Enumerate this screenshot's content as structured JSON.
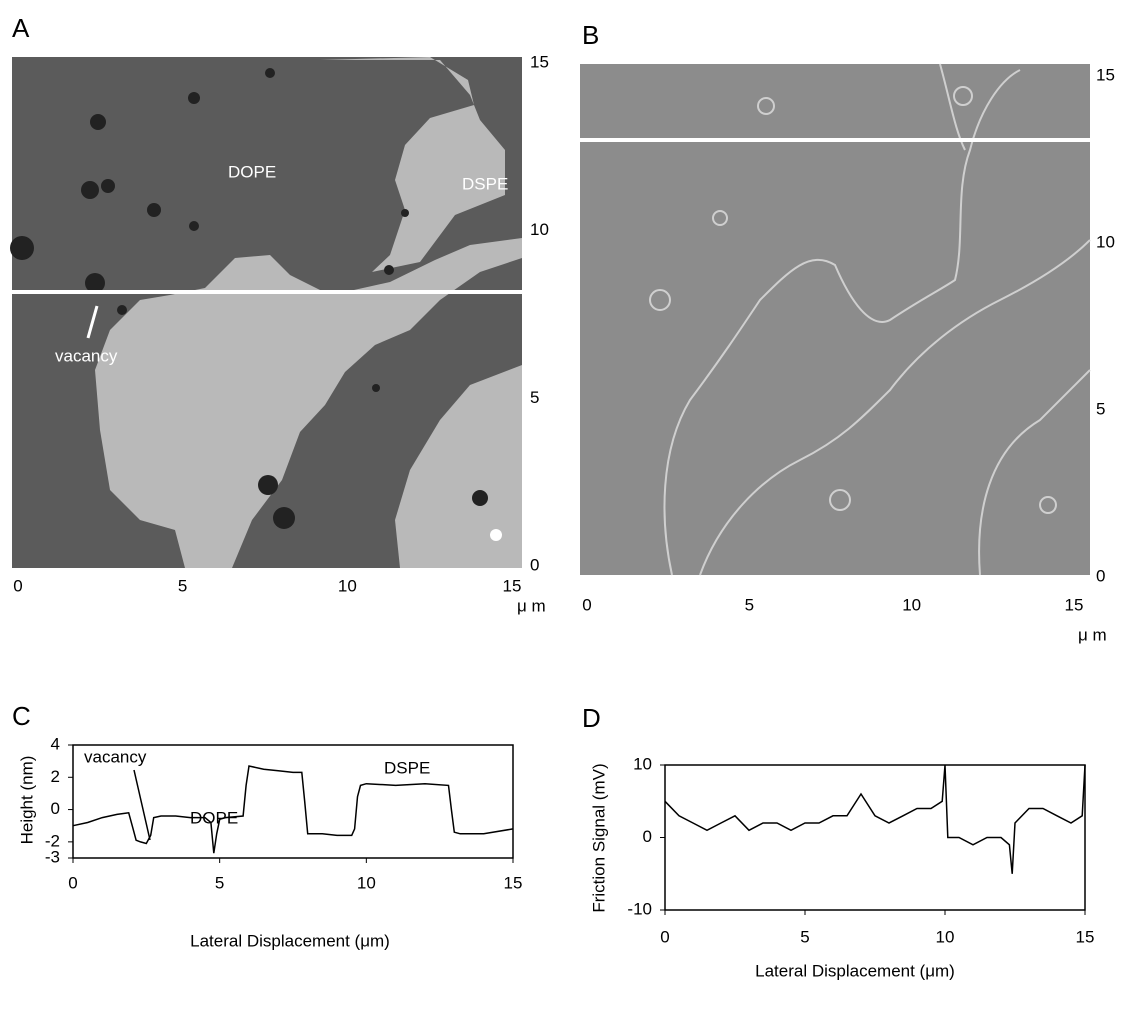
{
  "chart_data": [
    {
      "type": "image",
      "title": "A",
      "xlim": [
        0,
        15
      ],
      "ylim": [
        0,
        15
      ],
      "xticks": [
        0,
        5,
        10,
        15
      ],
      "yticks": [
        0,
        5,
        10,
        15
      ],
      "x_label": "μ m",
      "annotations": [
        "DOPE",
        "DSPE",
        "vacancy"
      ]
    },
    {
      "type": "image",
      "title": "B",
      "xlim": [
        0,
        15
      ],
      "ylim": [
        0,
        15
      ],
      "xticks": [
        0,
        5,
        10,
        15
      ],
      "yticks": [
        0,
        5,
        10,
        15
      ],
      "x_label": "μ m"
    },
    {
      "type": "line",
      "title": "C",
      "x_label": "Lateral Displacement (μm)",
      "y_label": "Height (nm)",
      "color": "#000000",
      "xlim": [
        0,
        15
      ],
      "ylim": [
        -3,
        4
      ],
      "xticks": [
        0,
        5,
        10,
        15
      ],
      "yticks": [
        4,
        2,
        0,
        -2,
        -3
      ],
      "x": [
        0,
        0.5,
        1,
        1.5,
        1.9,
        2.05,
        2.15,
        2.3,
        2.5,
        2.65,
        2.75,
        3,
        3.5,
        4,
        4.5,
        4.7,
        4.8,
        4.9,
        5.0,
        5.2,
        5.8,
        5.9,
        6.0,
        6.5,
        7,
        7.5,
        7.8,
        7.9,
        8.0,
        8.5,
        9,
        9.5,
        9.6,
        9.7,
        9.8,
        10,
        11,
        12,
        12.8,
        12.9,
        13.0,
        13.2,
        14,
        15
      ],
      "values": [
        -1.0,
        -0.8,
        -0.5,
        -0.3,
        -0.2,
        -1.2,
        -1.9,
        -2.0,
        -2.1,
        -1.6,
        -0.5,
        -0.4,
        -0.4,
        -0.5,
        -0.5,
        -0.8,
        -2.7,
        -1.5,
        -0.6,
        -0.5,
        -0.4,
        1.5,
        2.7,
        2.5,
        2.4,
        2.3,
        2.3,
        0.5,
        -1.5,
        -1.5,
        -1.6,
        -1.6,
        -1.2,
        0.8,
        1.5,
        1.6,
        1.5,
        1.6,
        1.5,
        0.0,
        -1.4,
        -1.5,
        -1.5,
        -1.2
      ],
      "annotations": [
        "vacancy",
        "DOPE",
        "DSPE"
      ]
    },
    {
      "type": "line",
      "title": "D",
      "x_label": "Lateral Displacement (μm)",
      "y_label": "Friction Signal (mV)",
      "color": "#000000",
      "xlim": [
        0,
        15
      ],
      "ylim": [
        -10,
        10
      ],
      "xticks": [
        0,
        5,
        10,
        15
      ],
      "yticks": [
        10,
        0,
        -10
      ],
      "x": [
        0,
        0.5,
        1,
        1.5,
        2,
        2.5,
        3,
        3.5,
        4,
        4.5,
        5,
        5.5,
        6,
        6.5,
        7,
        7.5,
        8,
        8.5,
        9,
        9.5,
        9.9,
        10,
        10.1,
        10.5,
        11,
        11.5,
        12,
        12.3,
        12.4,
        12.5,
        13,
        13.5,
        14,
        14.5,
        14.9,
        15
      ],
      "values": [
        5,
        3,
        2,
        1,
        2,
        3,
        1,
        2,
        2,
        1,
        2,
        2,
        3,
        3,
        6,
        3,
        2,
        3,
        4,
        4,
        5,
        10,
        0,
        0,
        -1,
        0,
        0,
        -1,
        -5,
        2,
        4,
        4,
        3,
        2,
        3,
        10
      ]
    }
  ]
}
